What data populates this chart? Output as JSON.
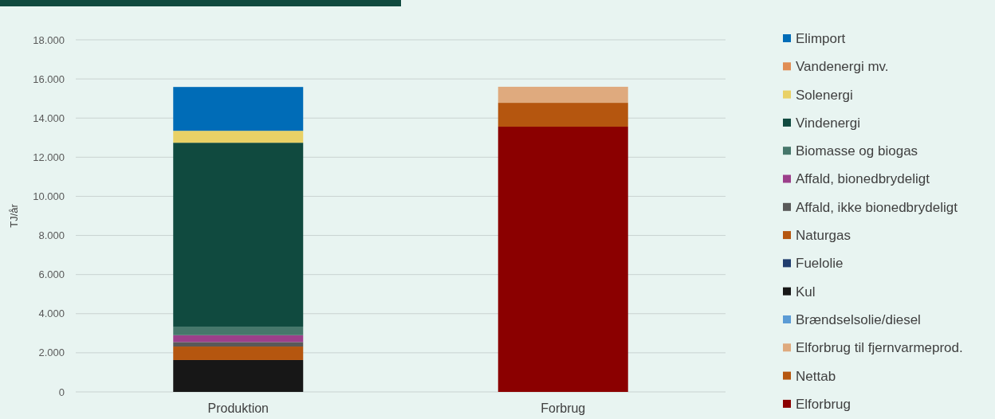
{
  "chart_data": {
    "type": "bar",
    "stacked": true,
    "categories": [
      "Produktion",
      "Forbrug"
    ],
    "ylabel": "TJ/år",
    "ylim": [
      0,
      18000
    ],
    "yticks": [
      {
        "value": 0,
        "label": "0"
      },
      {
        "value": 2000,
        "label": "2.000"
      },
      {
        "value": 4000,
        "label": "4.000"
      },
      {
        "value": 6000,
        "label": "6.000"
      },
      {
        "value": 8000,
        "label": "8.000"
      },
      {
        "value": 10000,
        "label": "10.000"
      },
      {
        "value": 12000,
        "label": "12.000"
      },
      {
        "value": 14000,
        "label": "14.000"
      },
      {
        "value": 16000,
        "label": "16.000"
      },
      {
        "value": 18000,
        "label": "18.000"
      }
    ],
    "grid": "y",
    "legend": "right",
    "series": [
      {
        "name": "Elforbrug",
        "color": "#8b0000",
        "values": [
          null,
          13560
        ]
      },
      {
        "name": "Nettab",
        "color": "#b5560f",
        "values": [
          null,
          1220
        ]
      },
      {
        "name": "Elforbrug til fjernvarmeprod.",
        "color": "#dfaa7e",
        "values": [
          null,
          820
        ]
      },
      {
        "name": "Brændselsolie/diesel",
        "color": "#5b9bd5",
        "values": [
          0,
          null
        ]
      },
      {
        "name": "Kul",
        "color": "#171717",
        "values": [
          1630,
          null
        ]
      },
      {
        "name": "Fuelolie",
        "color": "#203d6e",
        "values": [
          0,
          null
        ]
      },
      {
        "name": "Naturgas",
        "color": "#b5560f",
        "values": [
          690,
          null
        ]
      },
      {
        "name": "Affald, ikke bionedbrydeligt",
        "color": "#595959",
        "values": [
          230,
          null
        ]
      },
      {
        "name": "Affald, bionedbrydeligt",
        "color": "#9c3f8b",
        "values": [
          350,
          null
        ]
      },
      {
        "name": "Biomasse og biogas",
        "color": "#46776b",
        "values": [
          440,
          null
        ]
      },
      {
        "name": "Vindenergi",
        "color": "#104a3f",
        "values": [
          9400,
          null
        ]
      },
      {
        "name": "Solenergi",
        "color": "#e9d166",
        "values": [
          610,
          null
        ]
      },
      {
        "name": "Vandenergi mv.",
        "color": "#e08d53",
        "values": [
          0,
          null
        ]
      },
      {
        "name": "Elimport",
        "color": "#006cb7",
        "values": [
          2240,
          null
        ]
      }
    ]
  }
}
